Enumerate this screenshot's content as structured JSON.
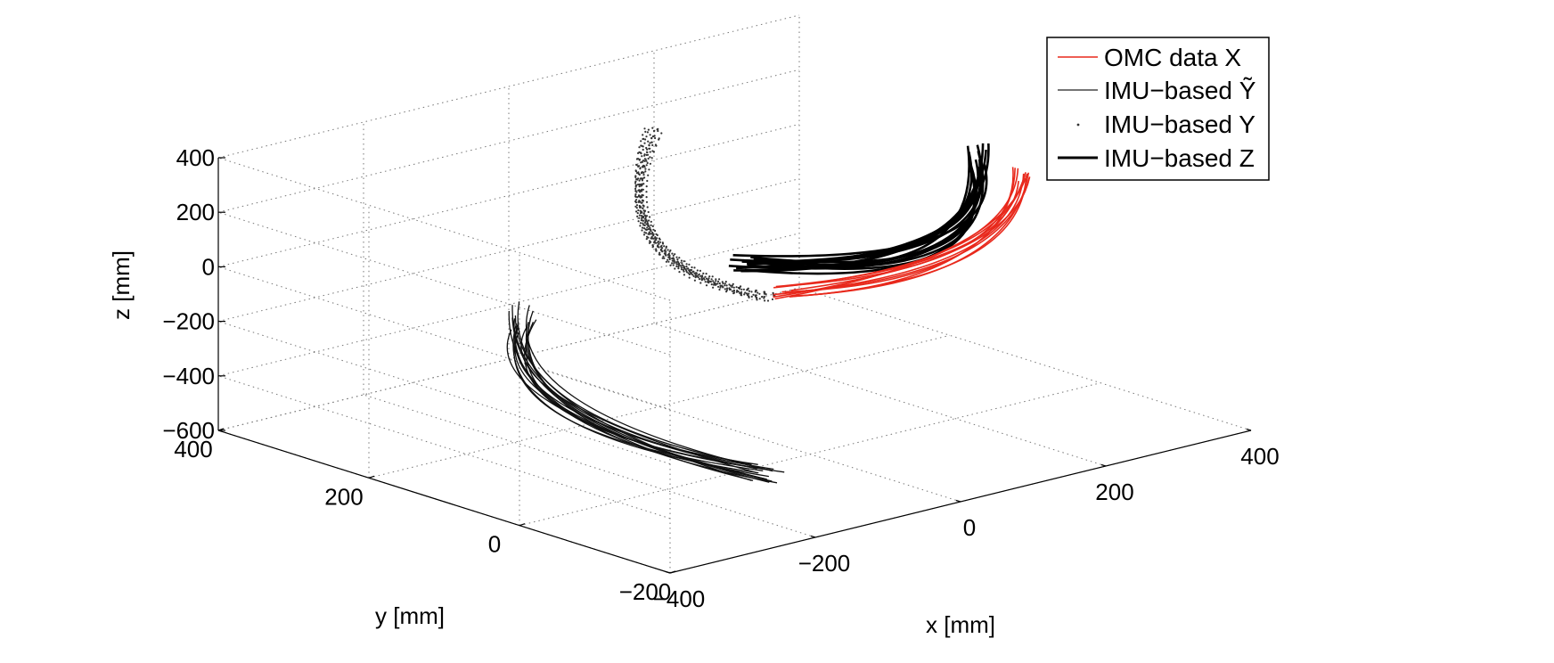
{
  "chart_data": {
    "type": "line",
    "projection": "3d",
    "grid": true,
    "grid_style": "dotted",
    "legend_position": "top-right",
    "xlabel": "x [mm]",
    "ylabel": "y [mm]",
    "zlabel": "z [mm]",
    "xlim": [
      -400,
      400
    ],
    "ylim": [
      -200,
      400
    ],
    "zlim": [
      -600,
      400
    ],
    "x_ticks": [
      -400,
      -200,
      0,
      200,
      400
    ],
    "y_ticks": [
      -200,
      0,
      200,
      400
    ],
    "z_ticks": [
      -600,
      -400,
      -200,
      0,
      200,
      400
    ],
    "x_tick_labels": [
      "−400",
      "−200",
      "0",
      "200",
      "400"
    ],
    "y_tick_labels": [
      "−200",
      "0",
      "200",
      "400"
    ],
    "z_tick_labels": [
      "−600",
      "−400",
      "−200",
      "0",
      "200",
      "400"
    ],
    "series": [
      {
        "name": "OMC data X",
        "style": "thin-line",
        "color": "#e8291c"
      },
      {
        "name": "IMU−based Ỹ",
        "style": "thin-line",
        "color": "#222222"
      },
      {
        "name": "IMU−based Y",
        "style": "dots",
        "color": "#333333"
      },
      {
        "name": "IMU−based Z",
        "style": "thick-line",
        "color": "#000000"
      }
    ]
  }
}
